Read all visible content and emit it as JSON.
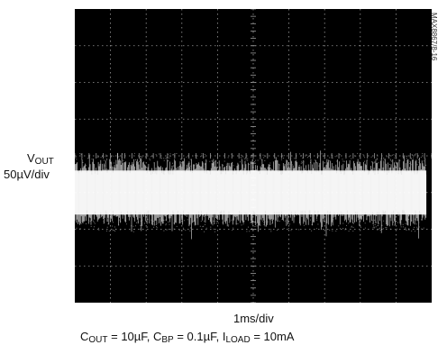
{
  "chart_data": {
    "type": "line",
    "title": "",
    "trace": {
      "name": "V",
      "name_sub": "OUT"
    },
    "y_scale": "50µV/div",
    "x_scale": "1ms/div",
    "grid": {
      "on": true,
      "x_divisions": 10,
      "y_divisions": 8
    },
    "conditions": [
      {
        "name": "C",
        "sub": "OUT",
        "value": " = 10µF, "
      },
      {
        "name": "C",
        "sub": "BP",
        "value": " = 0.1µF, "
      },
      {
        "name": "I",
        "sub": "LOAD",
        "value": " = 10mA"
      }
    ],
    "noise_band_divs": {
      "center": 5.0,
      "core_half_width": 0.8,
      "peak_half_width": 1.0
    },
    "trace_start_div": 0.0,
    "trace_end_div": 9.85
  },
  "figure_id": "MAX8867/8-16",
  "colors": {
    "screen": "#000000",
    "grid": "#9a9a9a",
    "trace": "#ffffff"
  }
}
